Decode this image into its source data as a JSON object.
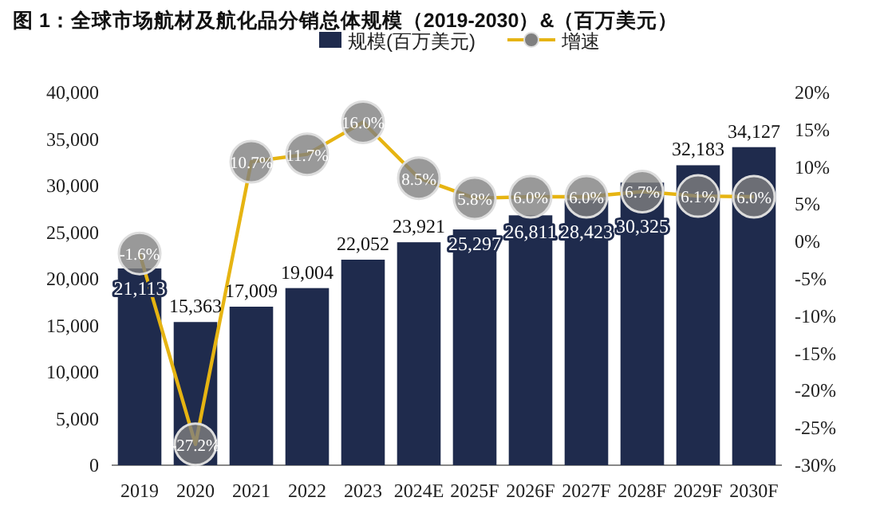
{
  "chart_data": {
    "type": "bar",
    "title": "图 1：全球市场航材及航化品分销总体规模（2019-2030）&（百万美元）",
    "categories": [
      "2019",
      "2020",
      "2021",
      "2022",
      "2023",
      "2024E",
      "2025F",
      "2026F",
      "2027F",
      "2028F",
      "2029F",
      "2030F"
    ],
    "series": [
      {
        "name": "规模(百万美元)",
        "type": "bar",
        "color": "#1f2b4d",
        "values": [
          21113,
          15363,
          17009,
          19004,
          22052,
          23921,
          25297,
          26811,
          28423,
          30325,
          32183,
          34127
        ],
        "value_labels": [
          "21,113",
          "15,363",
          "17,009",
          "19,004",
          "22,052",
          "23,921",
          "25,297",
          "26,811",
          "28,423",
          "30,325",
          "32,183",
          "34,127"
        ]
      },
      {
        "name": "增速",
        "type": "line",
        "axis": "y2",
        "color": "#e6b412",
        "marker": "circle",
        "values": [
          -1.6,
          -27.2,
          10.7,
          11.7,
          16.0,
          8.5,
          5.8,
          6.0,
          6.0,
          6.7,
          6.1,
          6.0
        ],
        "value_labels": [
          "-1.6%",
          "-27.2%",
          "10.7%",
          "11.7%",
          "16.0%",
          "8.5%",
          "5.8%",
          "6.0%",
          "6.0%",
          "6.7%",
          "6.1%",
          "6.0%"
        ]
      }
    ],
    "ylim": [
      0,
      40000
    ],
    "yticks": [
      0,
      {
        "value": 5000,
        "label": "5,000"
      },
      {
        "value": 10000,
        "label": "10,000"
      },
      {
        "value": 15000,
        "label": "15,000"
      },
      {
        "value": 20000,
        "label": "20,000"
      },
      {
        "value": 25000,
        "label": "25,000"
      },
      {
        "value": 30000,
        "label": "30,000"
      },
      {
        "value": 35000,
        "label": "35,000"
      },
      {
        "value": 40000,
        "label": "40,000"
      }
    ],
    "y2lim": [
      -30,
      20
    ],
    "y2ticks": [
      {
        "value": -30,
        "label": "-30%"
      },
      {
        "value": -25,
        "label": "-25%"
      },
      {
        "value": -20,
        "label": "-20%"
      },
      {
        "value": -15,
        "label": "-15%"
      },
      {
        "value": -10,
        "label": "-10%"
      },
      {
        "value": -5,
        "label": "-5%"
      },
      {
        "value": 0,
        "label": "0%"
      },
      {
        "value": 5,
        "label": "5%"
      },
      {
        "value": 10,
        "label": "10%"
      },
      {
        "value": 15,
        "label": "15%"
      },
      {
        "value": 20,
        "label": "20%"
      }
    ],
    "legend": "top",
    "grid": false
  }
}
